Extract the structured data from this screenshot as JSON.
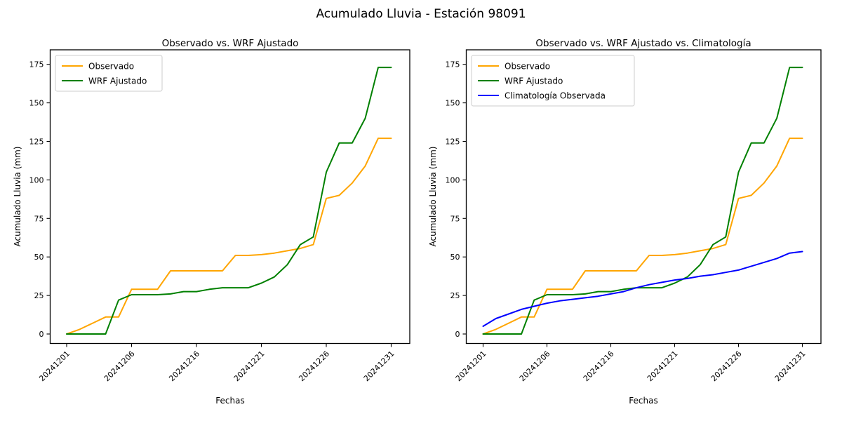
{
  "figure": {
    "suptitle": "Acumulado Lluvia - Estación 98091"
  },
  "chart_data": [
    {
      "type": "line",
      "title": "Observado vs. WRF Ajustado",
      "xlabel": "Fechas",
      "ylabel": "Acumulado Lluvia (mm)",
      "ylim": [
        0,
        175
      ],
      "y_ticks": [
        "0",
        "25",
        "50",
        "75",
        "100",
        "125",
        "150",
        "175"
      ],
      "n_points": 26,
      "x_tick_positions": [
        0,
        5,
        10,
        15,
        20,
        25
      ],
      "x_tick_labels": [
        "20241201",
        "20241206",
        "20241216",
        "20241221",
        "20241226",
        "20241231"
      ],
      "x_tick_rotation_deg": 45,
      "grid": false,
      "legend_position": "upper left",
      "series": [
        {
          "name": "Observado",
          "color": "#FFA500",
          "values": [
            0,
            3,
            7,
            11,
            11,
            29,
            29,
            29,
            41,
            41,
            41,
            41,
            41,
            51,
            51,
            51.5,
            52.5,
            54,
            55.5,
            58,
            88,
            90,
            98,
            109,
            127,
            127
          ]
        },
        {
          "name": "WRF Ajustado",
          "color": "#008000",
          "values": [
            0,
            0,
            0,
            0,
            22,
            25.5,
            25.5,
            25.5,
            26,
            27.5,
            27.5,
            29,
            30,
            30,
            30,
            33,
            37,
            45,
            58,
            63,
            105,
            124,
            124,
            140,
            173,
            173
          ]
        }
      ]
    },
    {
      "type": "line",
      "title": "Observado vs. WRF Ajustado vs. Climatología",
      "xlabel": "Fechas",
      "ylabel": "Acumulado Lluvia (mm)",
      "ylim": [
        0,
        175
      ],
      "y_ticks": [
        "0",
        "25",
        "50",
        "75",
        "100",
        "125",
        "150",
        "175"
      ],
      "n_points": 26,
      "x_tick_positions": [
        0,
        5,
        10,
        15,
        20,
        25
      ],
      "x_tick_labels": [
        "20241201",
        "20241206",
        "20241216",
        "20241221",
        "20241226",
        "20241231"
      ],
      "x_tick_rotation_deg": 45,
      "grid": false,
      "legend_position": "upper left",
      "series": [
        {
          "name": "Observado",
          "color": "#FFA500",
          "values": [
            0,
            3,
            7,
            11,
            11,
            29,
            29,
            29,
            41,
            41,
            41,
            41,
            41,
            51,
            51,
            51.5,
            52.5,
            54,
            55.5,
            58,
            88,
            90,
            98,
            109,
            127,
            127
          ]
        },
        {
          "name": "WRF Ajustado",
          "color": "#008000",
          "values": [
            0,
            0,
            0,
            0,
            22,
            25.5,
            25.5,
            25.5,
            26,
            27.5,
            27.5,
            29,
            30,
            30,
            30,
            33,
            37,
            45,
            58,
            63,
            105,
            124,
            124,
            140,
            173,
            173
          ]
        },
        {
          "name": "Climatología Observada",
          "color": "#0000FF",
          "values": [
            5,
            10,
            13,
            16,
            18,
            20,
            21.5,
            22.5,
            23.5,
            24.5,
            26,
            27.5,
            30,
            32,
            33.5,
            35,
            36,
            37.5,
            38.5,
            40,
            41.5,
            44,
            46.5,
            49,
            52.5,
            53.5
          ]
        }
      ]
    }
  ]
}
